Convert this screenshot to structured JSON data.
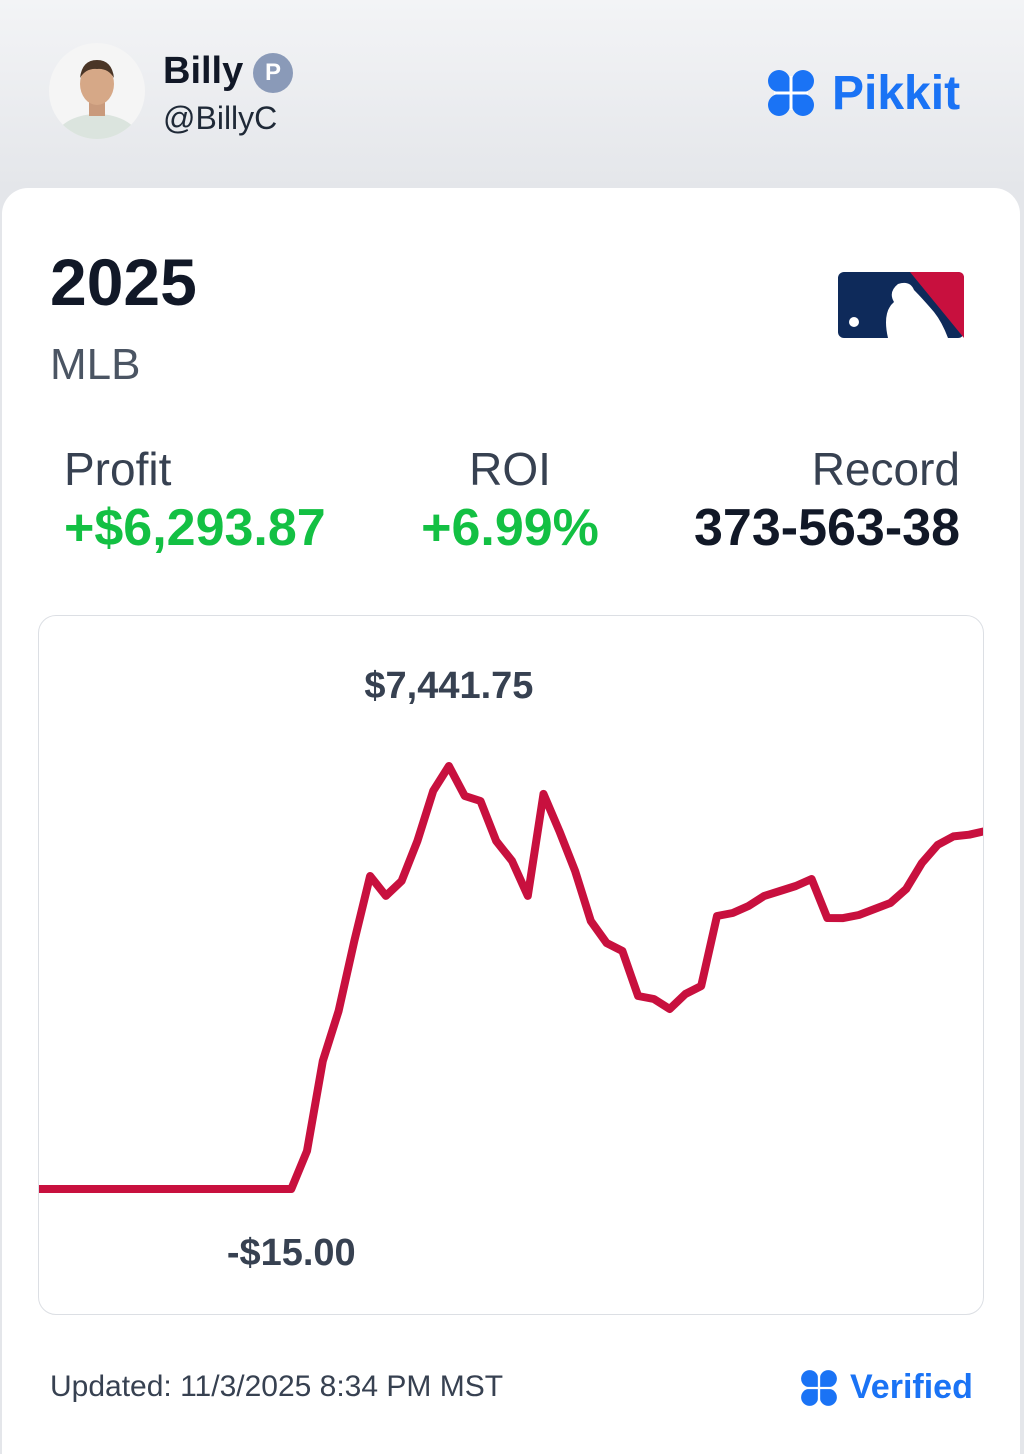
{
  "header": {
    "name": "Billy",
    "badge": "P",
    "handle": "@BillyC",
    "brand": "Pikkit"
  },
  "card": {
    "year": "2025",
    "league": "MLB",
    "stats": [
      {
        "label": "Profit",
        "value": "+$6,293.87"
      },
      {
        "label": "ROI",
        "value": "+6.99%"
      },
      {
        "label": "Record",
        "value": "373-563-38"
      }
    ]
  },
  "chart_data": {
    "type": "line",
    "series": [
      {
        "color": "#c8103e",
        "values": [
          -15,
          -15,
          -15,
          -15,
          -15,
          -15,
          -15,
          -15,
          -15,
          -15,
          -15,
          -15,
          -15,
          -15,
          -15,
          -15,
          -15,
          655,
          2242,
          3123,
          4357,
          5503,
          5151,
          5415,
          6120,
          7002,
          7441.75,
          6914,
          6825,
          6120,
          5768,
          5151,
          6950,
          6297,
          5591,
          4710,
          4322,
          4181,
          3388,
          3335,
          3158,
          3423,
          3564,
          4798,
          4851,
          4974,
          5151,
          5239,
          5327,
          5450,
          4763,
          4760,
          4816,
          4921,
          5027,
          5274,
          5732,
          6050,
          6200,
          6230,
          6293.87
        ]
      }
    ],
    "annotations": [
      {
        "value": 7441.75,
        "label": "$7,441.75"
      },
      {
        "value": -15,
        "label": "-$15.00"
      }
    ]
  },
  "footer": {
    "updated": "Updated: 11/3/2025 8:34 PM MST",
    "verified": "Verified"
  }
}
